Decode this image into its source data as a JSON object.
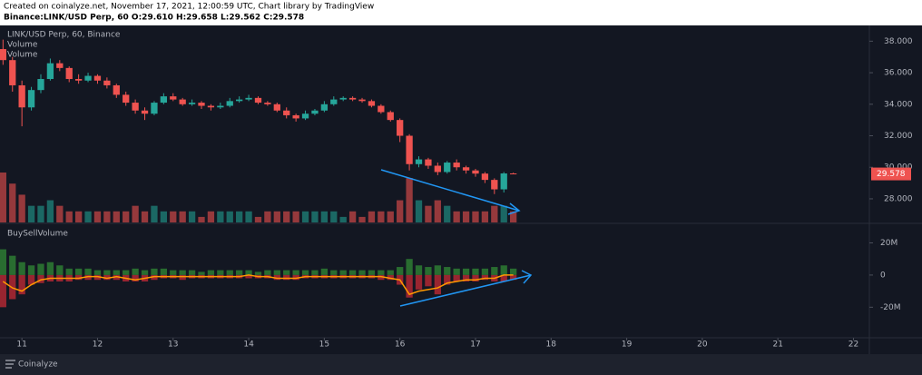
{
  "header": {
    "line1": "Created on coinalyze.net, November 17, 2021, 12:00:59 UTC, Chart library by TradingView",
    "line2": "Binance:LINK/USD Perp, 60 O:29.610 H:29.658 L:29.562 C:29.578"
  },
  "chart_data": [
    {
      "type": "candlestick",
      "title": "LINK/USD Perp, 60, Binance",
      "indicators": [
        "Volume",
        "Volume"
      ],
      "up_color": "#26a69a",
      "down_color": "#ef5350",
      "volume_up_color": "#1e7d75",
      "volume_down_color": "#b84244",
      "x": [
        10.75,
        10.875,
        11,
        11.125,
        11.25,
        11.375,
        11.5,
        11.625,
        11.75,
        11.875,
        12,
        12.125,
        12.25,
        12.375,
        12.5,
        12.625,
        12.75,
        12.875,
        13,
        13.125,
        13.25,
        13.375,
        13.5,
        13.625,
        13.75,
        13.875,
        14,
        14.125,
        14.25,
        14.375,
        14.5,
        14.625,
        14.75,
        14.875,
        15,
        15.125,
        15.25,
        15.375,
        15.5,
        15.625,
        15.75,
        15.875,
        16,
        16.125,
        16.25,
        16.375,
        16.5,
        16.625,
        16.75,
        16.875,
        17,
        17.125,
        17.25,
        17.375,
        17.5
      ],
      "open": [
        37.5,
        36.8,
        35.2,
        33.8,
        34.9,
        35.6,
        36.6,
        36.3,
        35.6,
        35.5,
        35.8,
        35.5,
        35.2,
        34.6,
        34.1,
        33.6,
        33.4,
        34.1,
        34.5,
        34.3,
        34.0,
        34.1,
        33.9,
        33.8,
        33.9,
        34.2,
        34.3,
        34.4,
        34.1,
        34.0,
        33.6,
        33.3,
        33.1,
        33.4,
        33.6,
        34.0,
        34.3,
        34.4,
        34.3,
        34.2,
        33.9,
        33.5,
        33.0,
        32.0,
        30.2,
        30.5,
        30.1,
        29.7,
        30.3,
        30.0,
        29.8,
        29.6,
        29.2,
        28.6,
        29.61
      ],
      "high": [
        38.1,
        37.0,
        35.5,
        35.1,
        35.9,
        36.9,
        36.8,
        36.4,
        35.9,
        36.0,
        35.9,
        35.7,
        35.3,
        34.8,
        34.3,
        33.8,
        34.2,
        34.7,
        34.7,
        34.4,
        34.3,
        34.2,
        34.0,
        34.1,
        34.4,
        34.5,
        34.6,
        34.5,
        34.2,
        34.1,
        33.8,
        33.4,
        33.6,
        33.7,
        34.2,
        34.5,
        34.5,
        34.5,
        34.4,
        34.3,
        34.0,
        33.6,
        33.1,
        32.1,
        30.7,
        30.6,
        30.3,
        30.4,
        30.5,
        30.1,
        29.9,
        29.7,
        29.3,
        29.7,
        29.658
      ],
      "low": [
        36.5,
        34.8,
        32.6,
        33.6,
        34.7,
        35.5,
        36.1,
        35.4,
        35.3,
        35.4,
        35.3,
        35.0,
        34.4,
        33.9,
        33.4,
        33.0,
        33.3,
        34.0,
        34.2,
        33.9,
        33.9,
        33.7,
        33.6,
        33.7,
        33.8,
        34.1,
        34.2,
        34.0,
        33.9,
        33.5,
        33.1,
        32.9,
        33.0,
        33.3,
        33.5,
        33.9,
        34.2,
        34.2,
        34.1,
        33.8,
        33.4,
        32.9,
        31.6,
        29.8,
        30.0,
        29.9,
        29.5,
        29.6,
        29.8,
        29.6,
        29.4,
        29.0,
        28.3,
        28.4,
        29.562
      ],
      "close": [
        36.8,
        35.2,
        33.8,
        34.9,
        35.6,
        36.6,
        36.3,
        35.6,
        35.5,
        35.8,
        35.5,
        35.2,
        34.6,
        34.1,
        33.6,
        33.4,
        34.1,
        34.5,
        34.3,
        34.0,
        34.1,
        33.9,
        33.8,
        33.9,
        34.2,
        34.3,
        34.4,
        34.1,
        34.0,
        33.6,
        33.3,
        33.1,
        33.4,
        33.6,
        34.0,
        34.3,
        34.4,
        34.3,
        34.2,
        33.9,
        33.5,
        33.0,
        32.0,
        30.2,
        30.5,
        30.1,
        29.7,
        30.3,
        30.0,
        29.8,
        29.6,
        29.2,
        28.6,
        29.61,
        29.578
      ],
      "volume": [
        9000000.0,
        7000000.0,
        5000000.0,
        3000000.0,
        3000000.0,
        4000000.0,
        3000000.0,
        2000000.0,
        2000000.0,
        2000000.0,
        2000000.0,
        2000000.0,
        2000000.0,
        2000000.0,
        3000000.0,
        2000000.0,
        3000000.0,
        2000000.0,
        2000000.0,
        2000000.0,
        2000000.0,
        1000000.0,
        2000000.0,
        2000000.0,
        2000000.0,
        2000000.0,
        2000000.0,
        1000000.0,
        2000000.0,
        2000000.0,
        2000000.0,
        2000000.0,
        2000000.0,
        2000000.0,
        2000000.0,
        2000000.0,
        1000000.0,
        2000000.0,
        1000000.0,
        2000000.0,
        2000000.0,
        2000000.0,
        4000000.0,
        8000000.0,
        4000000.0,
        3000000.0,
        4000000.0,
        3000000.0,
        2000000.0,
        2000000.0,
        2000000.0,
        2000000.0,
        3000000.0,
        3000000.0,
        2000000.0
      ],
      "xlim": [
        10.71,
        22.21
      ],
      "ylim": [
        26.5,
        39
      ],
      "yticks": [
        {
          "value": 38,
          "label": "38.000"
        },
        {
          "value": 36,
          "label": "36.000"
        },
        {
          "value": 34,
          "label": "34.000"
        },
        {
          "value": 32,
          "label": "32.000"
        },
        {
          "value": 30,
          "label": "30.000"
        },
        {
          "value": 28,
          "label": "28.000"
        }
      ]
    },
    {
      "type": "bar",
      "title": "BuySellVolume",
      "x": [
        10.75,
        10.875,
        11,
        11.125,
        11.25,
        11.375,
        11.5,
        11.625,
        11.75,
        11.875,
        12,
        12.125,
        12.25,
        12.375,
        12.5,
        12.625,
        12.75,
        12.875,
        13,
        13.125,
        13.25,
        13.375,
        13.5,
        13.625,
        13.75,
        13.875,
        14,
        14.125,
        14.25,
        14.375,
        14.5,
        14.625,
        14.75,
        14.875,
        15,
        15.125,
        15.25,
        15.375,
        15.5,
        15.625,
        15.75,
        15.875,
        16,
        16.125,
        16.25,
        16.375,
        16.5,
        16.625,
        16.75,
        16.875,
        17,
        17.125,
        17.25,
        17.375,
        17.5
      ],
      "series": [
        {
          "kind": "bar",
          "color": "#2e7d32",
          "values": [
            16000000.0,
            12000000.0,
            8000000.0,
            6000000.0,
            7000000.0,
            8000000.0,
            6000000.0,
            4000000.0,
            4000000.0,
            4000000.0,
            3000000.0,
            3000000.0,
            3000000.0,
            3000000.0,
            4000000.0,
            3000000.0,
            4000000.0,
            4000000.0,
            3000000.0,
            3000000.0,
            3000000.0,
            2000000.0,
            3000000.0,
            3000000.0,
            3000000.0,
            3000000.0,
            3000000.0,
            2000000.0,
            3000000.0,
            3000000.0,
            3000000.0,
            3000000.0,
            3000000.0,
            3000000.0,
            4000000.0,
            3000000.0,
            3000000.0,
            3000000.0,
            3000000.0,
            3000000.0,
            3000000.0,
            3000000.0,
            5000000.0,
            10000000.0,
            6000000.0,
            5000000.0,
            6000000.0,
            5000000.0,
            4000000.0,
            4000000.0,
            4000000.0,
            4000000.0,
            5000000.0,
            6000000.0,
            4000000.0
          ]
        },
        {
          "kind": "bar",
          "color": "#b22833",
          "values": [
            -20000000.0,
            -15000000.0,
            -12000000.0,
            -6000000.0,
            -5000000.0,
            -4000000.0,
            -4000000.0,
            -4000000.0,
            -3000000.0,
            -3000000.0,
            -3000000.0,
            -3000000.0,
            -3000000.0,
            -4000000.0,
            -4000000.0,
            -4000000.0,
            -3000000.0,
            -2000000.0,
            -2000000.0,
            -3000000.0,
            -2000000.0,
            -2000000.0,
            -2000000.0,
            -2000000.0,
            -2000000.0,
            -2000000.0,
            -2000000.0,
            -2000000.0,
            -2000000.0,
            -3000000.0,
            -3000000.0,
            -3000000.0,
            -2000000.0,
            -2000000.0,
            -2000000.0,
            -2000000.0,
            -2000000.0,
            -2000000.0,
            -2000000.0,
            -2000000.0,
            -3000000.0,
            -3000000.0,
            -6000000.0,
            -14000000.0,
            -9000000.0,
            -7000000.0,
            -12000000.0,
            -6000000.0,
            -4000000.0,
            -4000000.0,
            -4000000.0,
            -3000000.0,
            -4000000.0,
            -4000000.0,
            -3000000.0
          ]
        },
        {
          "kind": "line",
          "color": "#ff9800",
          "values": [
            -4000000.0,
            -8000000.0,
            -10000000.0,
            -6000000.0,
            -3000000.0,
            -2000000.0,
            -2000000.0,
            -2000000.0,
            -2000000.0,
            -1000000.0,
            -1000000.0,
            -2000000.0,
            -1000000.0,
            -2000000.0,
            -3000000.0,
            -2000000.0,
            -1000000.0,
            -1000000.0,
            -1000000.0,
            -1000000.0,
            -1000000.0,
            -1000000.0,
            -1000000.0,
            -1000000.0,
            -1000000.0,
            -1000000.0,
            0,
            -1000000.0,
            -1000000.0,
            -2000000.0,
            -2000000.0,
            -2000000.0,
            -1000000.0,
            -1000000.0,
            -1000000.0,
            -1000000.0,
            -1000000.0,
            -1000000.0,
            -1000000.0,
            -1000000.0,
            -1000000.0,
            -2000000.0,
            -3000000.0,
            -12000000.0,
            -10000000.0,
            -9000000.0,
            -8000000.0,
            -5000000.0,
            -4000000.0,
            -3000000.0,
            -3000000.0,
            -2000000.0,
            -2000000.0,
            0,
            0
          ]
        }
      ],
      "xlim": [
        10.71,
        22.21
      ],
      "ylim": [
        -39000000.0,
        31000000.0
      ],
      "yticks": [
        {
          "value": 20000000.0,
          "label": "20M"
        },
        0,
        {
          "value": -20000000.0,
          "label": "-20M"
        }
      ],
      "xticks": [
        11,
        12,
        13,
        14,
        15,
        16,
        17,
        18,
        19,
        20,
        21,
        22
      ]
    }
  ],
  "footer": {
    "brand": "Coinalyze"
  }
}
